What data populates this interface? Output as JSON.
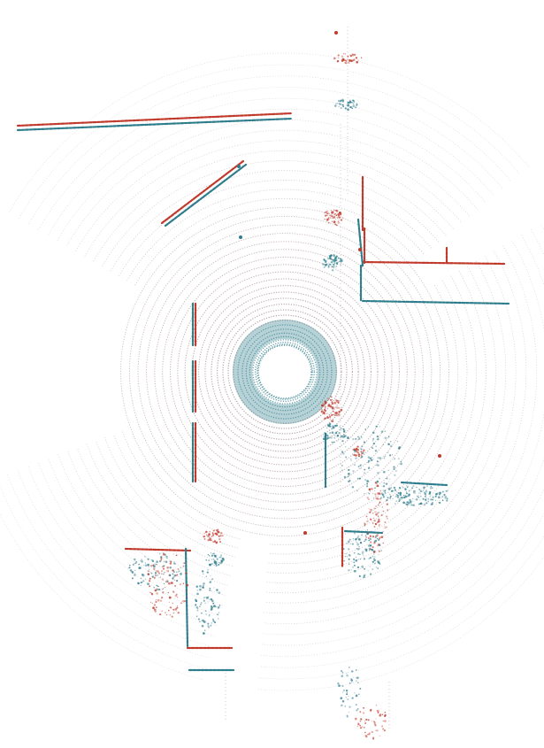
{
  "visualization": {
    "kind": "lidar-point-cloud-bird-eye-view",
    "background_color": "#ffffff",
    "colors": {
      "scan_a": "#c0392b",
      "scan_b": "#2e7d8c",
      "ring": "#8e6f76"
    },
    "ring_count": 40,
    "central_gap": true
  }
}
